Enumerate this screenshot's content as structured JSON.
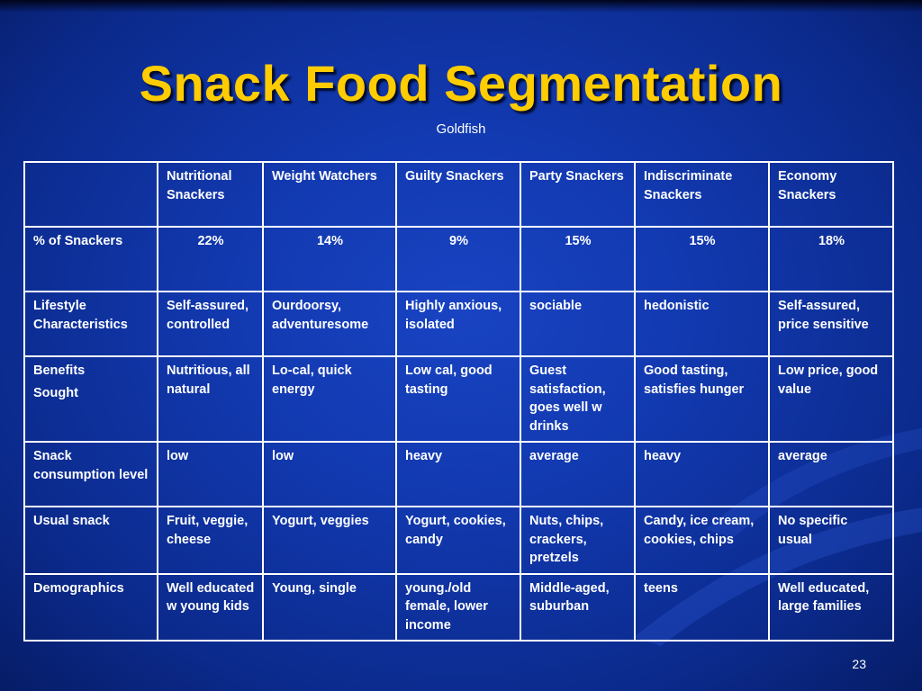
{
  "slide": {
    "title": "Snack Food Segmentation",
    "subtitle": "Goldfish",
    "page_number": "23"
  },
  "table": {
    "headers": [
      "",
      "Nutritional Snackers",
      "Weight Watchers",
      "Guilty Snackers",
      "Party Snackers",
      "Indiscriminate Snackers",
      "Economy Snackers"
    ],
    "rows": [
      {
        "label": "% of Snackers",
        "cells": [
          "22%",
          "14%",
          "9%",
          "15%",
          "15%",
          "18%"
        ]
      },
      {
        "label": "Lifestyle Characteristics",
        "cells": [
          "Self-assured, controlled",
          "Ourdoorsy, adventuresome",
          "Highly anxious, isolated",
          "sociable",
          "hedonistic",
          "Self-assured, price sensitive"
        ]
      },
      {
        "label": "Benefits",
        "label2": "Sought",
        "cells": [
          "Nutritious, all natural",
          "Lo-cal, quick energy",
          "Low cal, good tasting",
          "Guest satisfaction, goes well w drinks",
          "Good tasting, satisfies hunger",
          "Low price, good value"
        ]
      },
      {
        "label": "Snack consumption level",
        "cells": [
          "low",
          "low",
          "heavy",
          "average",
          "heavy",
          "average"
        ]
      },
      {
        "label": "Usual snack",
        "cells": [
          "Fruit, veggie, cheese",
          "Yogurt, veggies",
          "Yogurt, cookies, candy",
          "Nuts, chips, crackers, pretzels",
          "Candy, ice cream, cookies, chips",
          "No specific usual"
        ]
      },
      {
        "label": "Demographics",
        "cells": [
          "Well educated w young kids",
          "Young, single",
          "young./old female, lower income",
          "Middle-aged, suburban",
          "teens",
          "Well educated, large families"
        ]
      }
    ]
  },
  "colors": {
    "background": "#1239b0",
    "title": "#ffcc00",
    "text": "#ffffff",
    "grid": "#ffffff"
  }
}
